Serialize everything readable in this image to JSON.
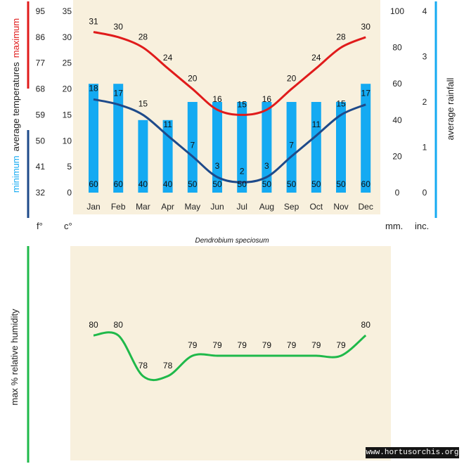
{
  "colors": {
    "background": "#f8f0dd",
    "max_line": "#e01b1b",
    "min_line": "#1e4a8a",
    "rain_bar": "#14aaf2",
    "humidity_line": "#1fb94a",
    "rain_axis": "#14aaf2"
  },
  "caption": "Dendrobium speciosum",
  "watermark": "www.hortusorchis.org",
  "chart_data": [
    {
      "type": "bar+line",
      "title": "",
      "categories": [
        "Jan",
        "Feb",
        "Mar",
        "Apr",
        "May",
        "Jun",
        "Jul",
        "Aug",
        "Sep",
        "Oct",
        "Nov",
        "Dec"
      ],
      "y_left": {
        "celsius_ticks": [
          0,
          5,
          10,
          15,
          20,
          25,
          30,
          35
        ],
        "fahrenheit_ticks": [
          32,
          41,
          50,
          59,
          68,
          77,
          86,
          95
        ],
        "ylim": [
          0,
          35
        ],
        "units": {
          "f": "f°",
          "c": "c°"
        },
        "label": {
          "min_word": "minimum",
          "middle": "average  temperatures",
          "max_word": "maximum"
        }
      },
      "y_right": {
        "mm_ticks": [
          0,
          20,
          40,
          60,
          80,
          100
        ],
        "inch_ticks": [
          0,
          1,
          2,
          3,
          4
        ],
        "ylim": [
          0,
          100
        ],
        "units": {
          "mm": "mm.",
          "inch": "inc."
        },
        "label": "average rainfall"
      },
      "series": [
        {
          "name": "maximum",
          "kind": "line",
          "values": [
            31,
            30,
            28,
            24,
            20,
            16,
            15,
            16,
            20,
            24,
            28,
            30
          ]
        },
        {
          "name": "minimum",
          "kind": "line",
          "values": [
            18,
            17,
            15,
            11,
            7,
            3,
            2,
            3,
            7,
            11,
            15,
            17
          ]
        },
        {
          "name": "average rainfall",
          "kind": "bar",
          "values": [
            60,
            60,
            40,
            40,
            50,
            50,
            50,
            50,
            50,
            50,
            50,
            60
          ]
        }
      ]
    },
    {
      "type": "line",
      "title": "",
      "categories": [
        "Jan",
        "Feb",
        "Mar",
        "Apr",
        "May",
        "Jun",
        "Jul",
        "Aug",
        "Sep",
        "Oct",
        "Nov",
        "Dec"
      ],
      "ylabel": "max %  relative humidity",
      "series": [
        {
          "name": "max % relative humidity",
          "values": [
            80,
            80,
            78,
            78,
            79,
            79,
            79,
            79,
            79,
            79,
            79,
            80
          ]
        }
      ]
    }
  ]
}
